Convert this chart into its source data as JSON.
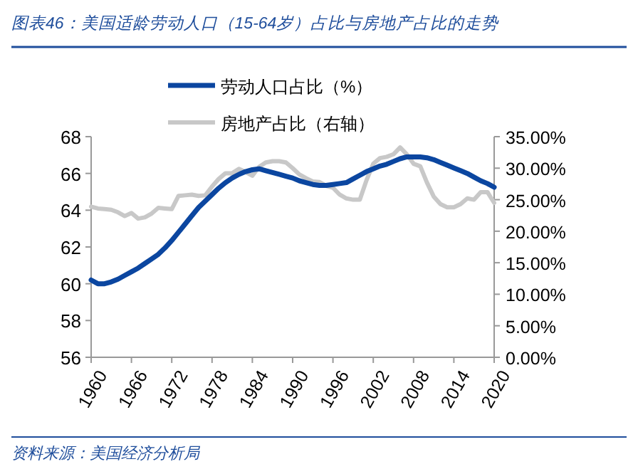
{
  "chart_data": {
    "type": "line",
    "title": "图表46：美国适龄劳动人口（15-64岁）占比与房地产占比的走势",
    "x": [
      1960,
      1961,
      1962,
      1963,
      1964,
      1965,
      1966,
      1967,
      1968,
      1969,
      1970,
      1971,
      1972,
      1973,
      1974,
      1975,
      1976,
      1977,
      1978,
      1979,
      1980,
      1981,
      1982,
      1983,
      1984,
      1985,
      1986,
      1987,
      1988,
      1989,
      1990,
      1991,
      1992,
      1993,
      1994,
      1995,
      1996,
      1997,
      1998,
      1999,
      2000,
      2001,
      2002,
      2003,
      2004,
      2005,
      2006,
      2007,
      2008,
      2009,
      2010,
      2011,
      2012,
      2013,
      2014,
      2015,
      2016,
      2017,
      2018,
      2019,
      2020
    ],
    "series": [
      {
        "name": "劳动人口占比（%）",
        "color": "#0b46a0",
        "values": [
          60.2,
          60.0,
          60.0,
          60.1,
          60.25,
          60.45,
          60.65,
          60.85,
          61.1,
          61.35,
          61.6,
          61.95,
          62.35,
          62.8,
          63.25,
          63.7,
          64.15,
          64.5,
          64.85,
          65.2,
          65.5,
          65.75,
          65.95,
          66.1,
          66.2,
          66.25,
          66.15,
          66.05,
          65.95,
          65.85,
          65.75,
          65.6,
          65.5,
          65.4,
          65.35,
          65.35,
          65.4,
          65.45,
          65.5,
          65.7,
          65.9,
          66.1,
          66.25,
          66.4,
          66.5,
          66.65,
          66.8,
          66.9,
          66.9,
          66.9,
          66.85,
          66.75,
          66.6,
          66.45,
          66.3,
          66.15,
          66.0,
          65.8,
          65.6,
          65.45,
          65.25
        ]
      },
      {
        "name": "房地产占比（右轴）",
        "color": "#c8c8c8",
        "axis": "y2",
        "values": [
          23.9,
          23.6,
          23.5,
          23.4,
          23.0,
          22.4,
          22.9,
          22.0,
          22.2,
          22.8,
          23.7,
          23.6,
          23.5,
          25.6,
          25.7,
          25.8,
          25.6,
          25.7,
          27.1,
          28.3,
          29.2,
          29.2,
          29.9,
          29.4,
          28.8,
          30.2,
          30.9,
          31.1,
          31.1,
          30.9,
          30.0,
          29.0,
          28.4,
          27.9,
          27.8,
          27.2,
          26.9,
          25.8,
          25.2,
          25.0,
          25.0,
          28.1,
          30.7,
          31.6,
          31.8,
          32.2,
          33.3,
          32.2,
          30.7,
          30.3,
          27.7,
          25.5,
          24.3,
          23.8,
          23.8,
          24.3,
          25.2,
          25.0,
          26.2,
          26.2,
          24.5
        ]
      }
    ],
    "xlim": [
      1960,
      2020
    ],
    "xticks": [
      1960,
      1966,
      1972,
      1978,
      1984,
      1990,
      1996,
      2002,
      2008,
      2014,
      2020
    ],
    "ylim": [
      56,
      68
    ],
    "yticks": [
      56,
      58,
      60,
      62,
      64,
      66,
      68
    ],
    "y2lim": [
      0,
      35
    ],
    "y2ticks": [
      {
        "value": 0,
        "label": "0.00%"
      },
      {
        "value": 5,
        "label": "5.00%"
      },
      {
        "value": 10,
        "label": "10.00%"
      },
      {
        "value": 15,
        "label": "15.00%"
      },
      {
        "value": 20,
        "label": "20.00%"
      },
      {
        "value": 25,
        "label": "25.00%"
      },
      {
        "value": 30,
        "label": "30.00%"
      },
      {
        "value": 35,
        "label": "35.00%"
      }
    ],
    "legend": "top",
    "grid": false,
    "annotations": [
      "资料来源：美国经济分析局"
    ]
  }
}
